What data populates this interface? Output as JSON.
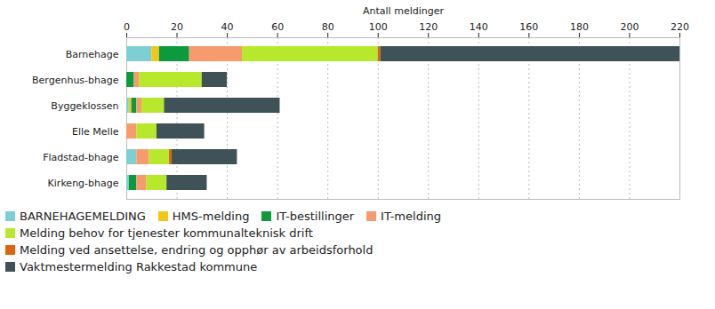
{
  "chart_data": {
    "type": "bar",
    "orientation": "horizontal",
    "stacked": true,
    "x_label": "Antall meldinger",
    "categories": [
      "Barnehage",
      "Bergenhus-bhage",
      "Byggeklossen",
      "Elle Melle",
      "Fladstad-bhage",
      "Kirkeng-bhage"
    ],
    "series": [
      {
        "name": "BARNEHAGEMELDING",
        "color": "#7ecfd4",
        "values": [
          10,
          0,
          1,
          0,
          4,
          1
        ]
      },
      {
        "name": "HMS-melding",
        "color": "#f5c518",
        "values": [
          3,
          0,
          1,
          0,
          0,
          0
        ]
      },
      {
        "name": "IT-bestillinger",
        "color": "#0c9a3c",
        "values": [
          12,
          3,
          2,
          0,
          0,
          3
        ]
      },
      {
        "name": "IT-melding",
        "color": "#f79a6e",
        "values": [
          21,
          2,
          2,
          4,
          5,
          4
        ]
      },
      {
        "name": "Melding behov for tjenester kommunalteknisk drift",
        "color": "#b8e82b",
        "values": [
          54,
          25,
          9,
          8,
          8,
          8
        ]
      },
      {
        "name": "Melding ved ansettelse, endring og opphør av arbeidsforhold",
        "color": "#e0620c",
        "values": [
          1,
          0,
          0,
          0,
          1,
          0
        ]
      },
      {
        "name": "Vaktmestermelding Rakkestad kommune",
        "color": "#3e5258",
        "values": [
          119,
          10,
          46,
          19,
          26,
          16
        ]
      }
    ],
    "xlim": [
      0,
      220
    ],
    "xticks": [
      0,
      20,
      40,
      60,
      80,
      100,
      120,
      140,
      160,
      180,
      200,
      220
    ],
    "grid": true,
    "legend": "bottom"
  }
}
